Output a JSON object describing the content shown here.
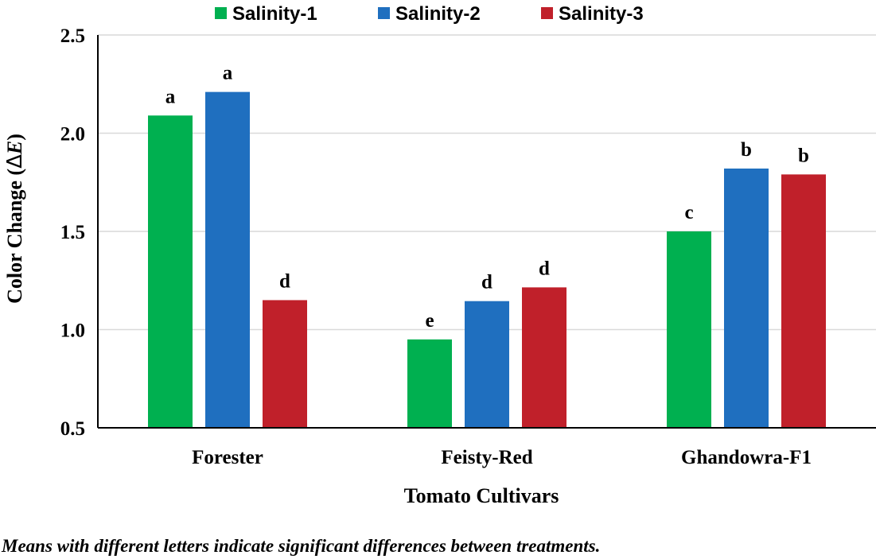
{
  "chart_data": {
    "type": "bar",
    "title": "",
    "xlabel": "Tomato Cultivars",
    "ylabel_prefix": "Color Change (",
    "ylabel_delta": "Δ",
    "ylabel_var": "E",
    "ylabel_suffix": ")",
    "ylim": [
      0.5,
      2.5
    ],
    "yticks": [
      0.5,
      1.0,
      1.5,
      2.0,
      2.5
    ],
    "ytick_labels": [
      "0.5",
      "1.0",
      "1.5",
      "2.0",
      "2.5"
    ],
    "grid": true,
    "legend_position": "top",
    "categories": [
      "Forester",
      "Feisty-Red",
      "Ghandowra-F1"
    ],
    "series": [
      {
        "name": "Salinity-1",
        "color": "#00b050",
        "values": [
          2.09,
          0.95,
          1.5
        ],
        "labels": [
          "a",
          "e",
          "c"
        ]
      },
      {
        "name": "Salinity-2",
        "color": "#1f6fbf",
        "values": [
          2.21,
          1.145,
          1.82
        ],
        "labels": [
          "a",
          "d",
          "b"
        ]
      },
      {
        "name": "Salinity-3",
        "color": "#c0202a",
        "values": [
          1.15,
          1.215,
          1.79
        ],
        "labels": [
          "d",
          "d",
          "b"
        ]
      }
    ]
  },
  "footnote": "Means with different letters indicate significant differences between treatments."
}
